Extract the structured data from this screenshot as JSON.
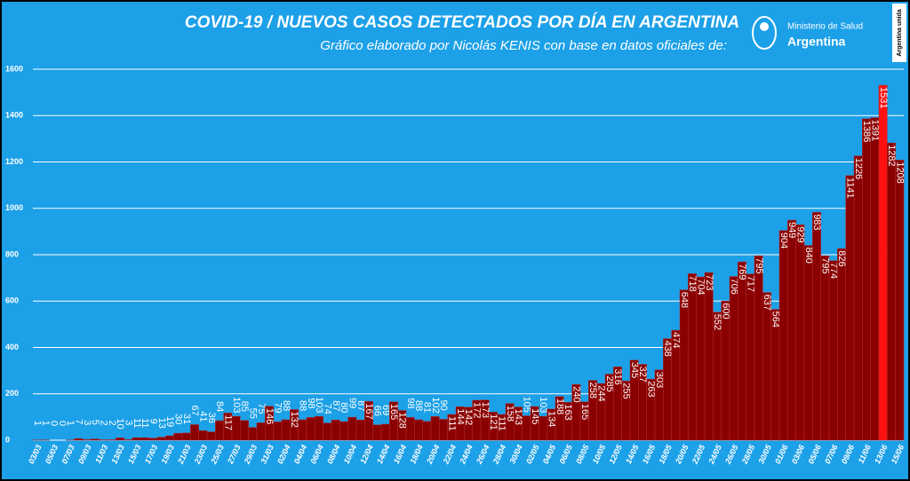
{
  "chart_data": {
    "type": "bar",
    "title": "COVID-19  /  NUEVOS CASOS DETECTADOS POR DÍA EN ARGENTINA",
    "subtitle": "Gráfico elaborado por Nicolás KENIS con base en datos oficiales de:",
    "logo": {
      "ministry": "Ministerio de Salud",
      "country": "Argentina",
      "badge": "Argentina unida"
    },
    "categories": [
      "03/03",
      null,
      "05/03",
      null,
      "07/03",
      null,
      "09/03",
      null,
      "11/03",
      null,
      "13/03",
      null,
      "15/03",
      null,
      "17/03",
      null,
      "19/03",
      null,
      "21/03",
      null,
      "23/03",
      null,
      "25/03",
      null,
      "27/03",
      null,
      "29/03",
      null,
      "31/03",
      null,
      "02/04",
      null,
      "04/04",
      null,
      "06/04",
      null,
      "08/04",
      null,
      "10/04",
      null,
      "12/04",
      null,
      "14/04",
      null,
      "16/04",
      null,
      "18/04",
      null,
      "20/04",
      null,
      "22/04",
      null,
      "24/04",
      null,
      "26/04",
      null,
      "28/04",
      null,
      "30/04",
      null,
      "02/05",
      null,
      "04/05",
      null,
      "06/05",
      null,
      "08/05",
      null,
      "10/05",
      null,
      "12/05",
      null,
      "14/05",
      null,
      "16/05",
      null,
      "18/05",
      null,
      "20/05",
      null,
      "22/05",
      null,
      "24/05",
      null,
      "26/05",
      null,
      "28/05",
      null,
      "30/05",
      null,
      "01/06",
      null,
      "03/06",
      null,
      "05/06",
      null,
      "07/06",
      null,
      "09/06",
      null,
      "11/06",
      null,
      "13/06",
      null,
      "15/06"
    ],
    "values": [
      1,
      1,
      0,
      0,
      1,
      7,
      3,
      5,
      2,
      2,
      10,
      3,
      11,
      11,
      9,
      13,
      19,
      30,
      31,
      67,
      41,
      36,
      84,
      117,
      103,
      85,
      55,
      75,
      146,
      79,
      88,
      132,
      88,
      98,
      103,
      74,
      87,
      80,
      99,
      87,
      167,
      66,
      69,
      165,
      128,
      98,
      88,
      81,
      102,
      90,
      111,
      144,
      142,
      172,
      173,
      121,
      111,
      158,
      143,
      105,
      145,
      103,
      134,
      188,
      163,
      240,
      165,
      258,
      244,
      285,
      316,
      255,
      345,
      327,
      263,
      303,
      438,
      474,
      648,
      718,
      704,
      723,
      552,
      600,
      706,
      769,
      717,
      795,
      637,
      564,
      904,
      949,
      929,
      840,
      983,
      795,
      774,
      826,
      1141,
      1226,
      1386,
      1391,
      1531,
      1282,
      1208
    ],
    "color": "#8b0000",
    "highlight_category": "13/06",
    "highlight_color": "#ff1010",
    "background": "#1ca0e8",
    "ylim": [
      0,
      1600
    ],
    "yticks": [
      0,
      200,
      400,
      600,
      800,
      1000,
      1200,
      1400,
      1600
    ],
    "grid": true
  }
}
